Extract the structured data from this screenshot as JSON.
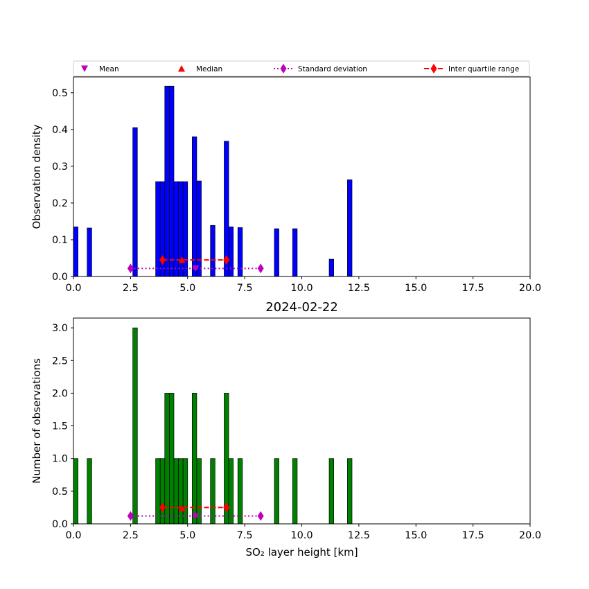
{
  "legend": {
    "entries": [
      {
        "label": "Mean",
        "color": "#bf00bf",
        "marker": "triangle-down"
      },
      {
        "label": "Median",
        "color": "#ff0000",
        "marker": "triangle-up"
      },
      {
        "label": "Standard deviation",
        "color": "#bf00bf",
        "marker": "thin-diamond",
        "linestyle": "dotted"
      },
      {
        "label": "Inter quartile range",
        "color": "#ff0000",
        "marker": "thin-diamond",
        "linestyle": "dashed"
      }
    ],
    "placement": "above-top-plot"
  },
  "chart_data": [
    {
      "type": "bar",
      "ylabel": "Observation density",
      "xlabel": "",
      "title": "",
      "color": "#0000ff",
      "xlim": [
        0,
        20
      ],
      "ylim": [
        0,
        0.543
      ],
      "xticks": [
        "0.0",
        "2.5",
        "5.0",
        "7.5",
        "10.0",
        "12.5",
        "15.0",
        "17.5",
        "20.0"
      ],
      "xtick_values": [
        0,
        2.5,
        5,
        7.5,
        10,
        12.5,
        15,
        17.5,
        20
      ],
      "yticks": [
        "0.0",
        "0.1",
        "0.2",
        "0.3",
        "0.4",
        "0.5"
      ],
      "ytick_values": [
        0,
        0.1,
        0.2,
        0.3,
        0.4,
        0.5
      ],
      "bin_width": 0.2,
      "bins": [
        {
          "x0": 0.0,
          "value": 0.135
        },
        {
          "x0": 0.6,
          "value": 0.132
        },
        {
          "x0": 2.6,
          "value": 0.405
        },
        {
          "x0": 3.6,
          "value": 0.258
        },
        {
          "x0": 3.8,
          "value": 0.258
        },
        {
          "x0": 4.0,
          "value": 0.518
        },
        {
          "x0": 4.2,
          "value": 0.518
        },
        {
          "x0": 4.4,
          "value": 0.258
        },
        {
          "x0": 4.6,
          "value": 0.258
        },
        {
          "x0": 4.8,
          "value": 0.258
        },
        {
          "x0": 5.2,
          "value": 0.38
        },
        {
          "x0": 5.4,
          "value": 0.26
        },
        {
          "x0": 6.0,
          "value": 0.139
        },
        {
          "x0": 6.6,
          "value": 0.368
        },
        {
          "x0": 6.8,
          "value": 0.135
        },
        {
          "x0": 7.2,
          "value": 0.133
        },
        {
          "x0": 8.8,
          "value": 0.13
        },
        {
          "x0": 9.6,
          "value": 0.13
        },
        {
          "x0": 11.2,
          "value": 0.047
        },
        {
          "x0": 12.0,
          "value": 0.263
        }
      ],
      "stats": {
        "mean": {
          "x": 5.35,
          "y": 0.022
        },
        "median": {
          "x": 4.75,
          "y": 0.045
        },
        "std": {
          "x": [
            2.5,
            8.2
          ],
          "y": 0.022
        },
        "iqr": {
          "x": [
            3.9,
            6.7
          ],
          "y": 0.045
        }
      }
    },
    {
      "type": "bar",
      "title": "2024-02-22",
      "ylabel": "Number of observations",
      "xlabel": "SO₂ layer height [km]",
      "color": "#008000",
      "xlim": [
        0,
        20
      ],
      "ylim": [
        0,
        3.15
      ],
      "xticks": [
        "0.0",
        "2.5",
        "5.0",
        "7.5",
        "10.0",
        "12.5",
        "15.0",
        "17.5",
        "20.0"
      ],
      "xtick_values": [
        0,
        2.5,
        5,
        7.5,
        10,
        12.5,
        15,
        17.5,
        20
      ],
      "yticks": [
        "0.0",
        "0.5",
        "1.0",
        "1.5",
        "2.0",
        "2.5",
        "3.0"
      ],
      "ytick_values": [
        0,
        0.5,
        1,
        1.5,
        2,
        2.5,
        3
      ],
      "bin_width": 0.2,
      "bins": [
        {
          "x0": 0.0,
          "value": 1
        },
        {
          "x0": 0.6,
          "value": 1
        },
        {
          "x0": 2.6,
          "value": 3
        },
        {
          "x0": 3.6,
          "value": 1
        },
        {
          "x0": 3.8,
          "value": 1
        },
        {
          "x0": 4.0,
          "value": 2
        },
        {
          "x0": 4.2,
          "value": 2
        },
        {
          "x0": 4.4,
          "value": 1
        },
        {
          "x0": 4.6,
          "value": 1
        },
        {
          "x0": 4.8,
          "value": 1
        },
        {
          "x0": 5.2,
          "value": 2
        },
        {
          "x0": 5.4,
          "value": 1
        },
        {
          "x0": 6.0,
          "value": 1
        },
        {
          "x0": 6.6,
          "value": 2
        },
        {
          "x0": 6.8,
          "value": 1
        },
        {
          "x0": 7.2,
          "value": 1
        },
        {
          "x0": 8.8,
          "value": 1
        },
        {
          "x0": 9.6,
          "value": 1
        },
        {
          "x0": 11.2,
          "value": 1
        },
        {
          "x0": 12.0,
          "value": 1
        }
      ],
      "stats": {
        "mean": {
          "x": 5.35,
          "y": 0.12
        },
        "median": {
          "x": 4.75,
          "y": 0.24
        },
        "std": {
          "x": [
            2.5,
            8.2
          ],
          "y": 0.12
        },
        "iqr": {
          "x": [
            3.9,
            6.7
          ],
          "y": 0.25
        }
      }
    }
  ]
}
